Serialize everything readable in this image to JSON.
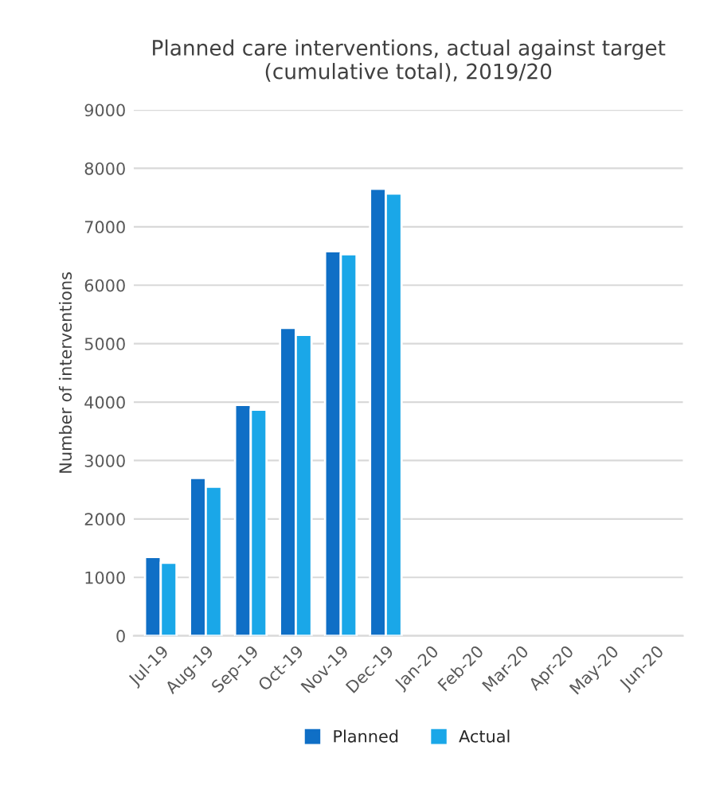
{
  "chart_data": {
    "type": "bar",
    "title": "Planned care interventions, actual against target\n(cumulative total), 2019/20",
    "ylabel": "Number of interventions",
    "categories": [
      "Jul-19",
      "Aug-19",
      "Sep-19",
      "Oct-19",
      "Nov-19",
      "Dec-19",
      "Jan-20",
      "Feb-20",
      "Mar-20",
      "Apr-20",
      "May-20",
      "Jun-20"
    ],
    "series": [
      {
        "name": "Planned",
        "color": "#0f6fc6",
        "values": [
          1350,
          2700,
          3950,
          5270,
          6580,
          7650,
          null,
          null,
          null,
          null,
          null,
          null
        ]
      },
      {
        "name": "Actual",
        "color": "#1aa7e8",
        "values": [
          1250,
          2550,
          3870,
          5150,
          6530,
          7570,
          null,
          null,
          null,
          null,
          null,
          null
        ]
      }
    ],
    "ylim": [
      0,
      9000
    ],
    "yticks": [
      0,
      1000,
      2000,
      3000,
      4000,
      5000,
      6000,
      7000,
      8000,
      9000
    ],
    "grid": "y",
    "legend": "bottom"
  }
}
